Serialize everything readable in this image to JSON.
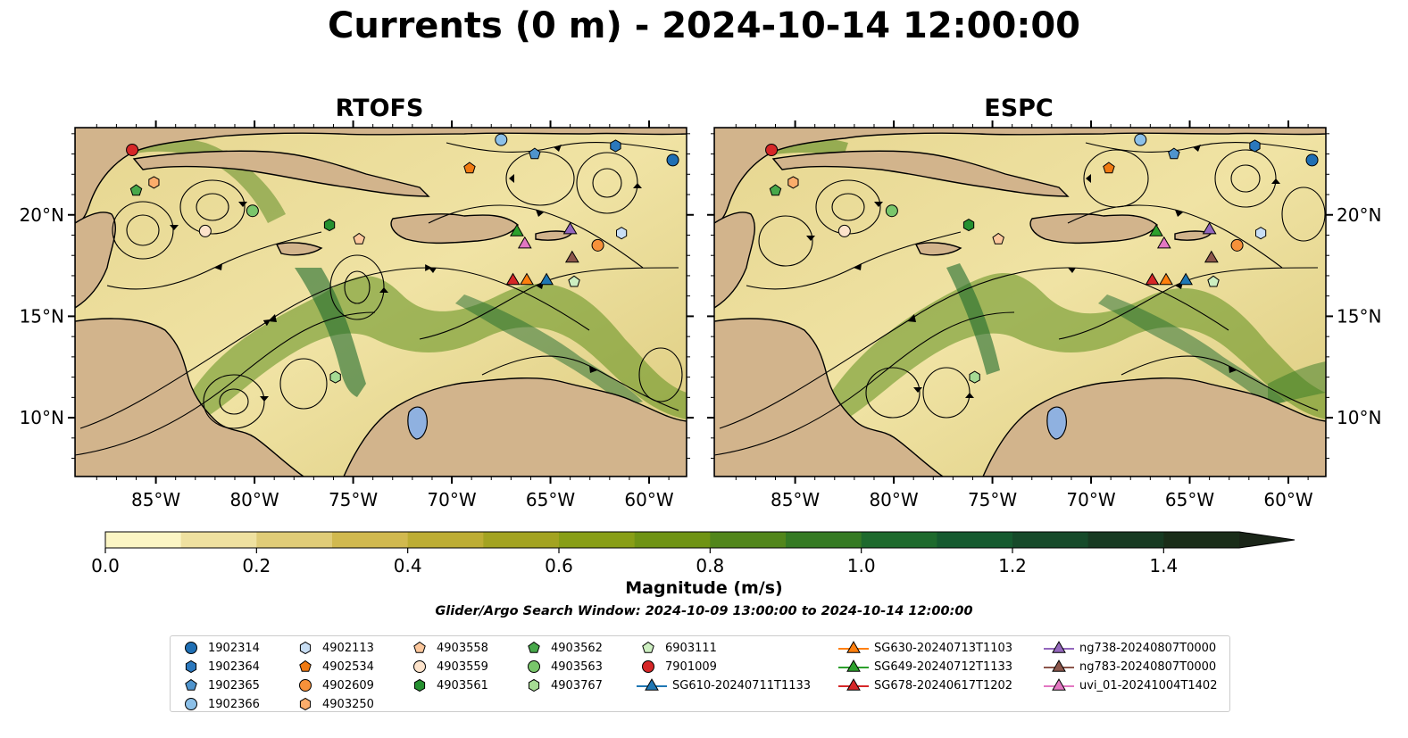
{
  "title": "Currents (0 m) - 2024-10-14 12:00:00",
  "panels": [
    {
      "title": "RTOFS"
    },
    {
      "title": "ESPC"
    }
  ],
  "axes": {
    "lat_ticks": [
      "10°N",
      "15°N",
      "20°N"
    ],
    "lon_ticks": [
      "85°W",
      "80°W",
      "75°W",
      "70°W",
      "65°W",
      "60°W"
    ]
  },
  "colorbar": {
    "label": "Magnitude (m/s)",
    "ticks": [
      "0.0",
      "0.2",
      "0.4",
      "0.6",
      "0.8",
      "1.0",
      "1.2",
      "1.4"
    ],
    "range": [
      0,
      1.5
    ],
    "extend": "max",
    "colors": [
      "#fbf5c4",
      "#efe1a0",
      "#e0cc78",
      "#d1b94f",
      "#bdad34",
      "#a3a321",
      "#889e16",
      "#6f9314",
      "#52861b",
      "#357a23",
      "#1e6a2d",
      "#155a2f",
      "#164a2a",
      "#173a22",
      "#1a2d19"
    ]
  },
  "search_window": "Glider/Argo Search Window: 2024-10-09 13:00:00 to 2024-10-14 12:00:00",
  "map_colors": {
    "land": "#d2b48c",
    "lakes": "#8fb1e0",
    "rivers": "#9cb4d8",
    "streamlines": "#000000"
  },
  "legend": [
    {
      "label": "1902314",
      "marker": "circle",
      "color": "#1f6fb4"
    },
    {
      "label": "1902364",
      "marker": "hexagon",
      "color": "#2b78bd"
    },
    {
      "label": "1902365",
      "marker": "pentagon",
      "color": "#4f94cd"
    },
    {
      "label": "1902366",
      "marker": "circle",
      "color": "#8cc0e8"
    },
    {
      "label": "4902113",
      "marker": "hexagon",
      "color": "#c8def4"
    },
    {
      "label": "4902534",
      "marker": "pentagon",
      "color": "#f07a12"
    },
    {
      "label": "4902609",
      "marker": "circle",
      "color": "#f6913a"
    },
    {
      "label": "4903250",
      "marker": "hexagon",
      "color": "#fbad6b"
    },
    {
      "label": "4903558",
      "marker": "pentagon",
      "color": "#fcc79c"
    },
    {
      "label": "4903559",
      "marker": "circle",
      "color": "#fde3cb"
    },
    {
      "label": "4903561",
      "marker": "hexagon",
      "color": "#259030"
    },
    {
      "label": "4903562",
      "marker": "pentagon",
      "color": "#47a84a"
    },
    {
      "label": "4903563",
      "marker": "circle",
      "color": "#79c66b"
    },
    {
      "label": "4903767",
      "marker": "hexagon",
      "color": "#a6db94"
    },
    {
      "label": "6903111",
      "marker": "pentagon",
      "color": "#cdefc1"
    },
    {
      "label": "7901009",
      "marker": "circle",
      "color": "#d62728"
    },
    {
      "label": "SG610-20240711T1133",
      "marker": "triangle-line",
      "color": "#1f77b4"
    },
    {
      "label": "SG630-20240713T1103",
      "marker": "triangle-line",
      "color": "#ff7f0e"
    },
    {
      "label": "SG649-20240712T1133",
      "marker": "triangle-line",
      "color": "#2ca02c"
    },
    {
      "label": "SG678-20240617T1202",
      "marker": "triangle-line",
      "color": "#d62728"
    },
    {
      "label": "ng738-20240807T0000",
      "marker": "triangle-line",
      "color": "#9467bd"
    },
    {
      "label": "ng783-20240807T0000",
      "marker": "triangle-line",
      "color": "#8c564b"
    },
    {
      "label": "uvi_01-20241004T1402",
      "marker": "triangle-line",
      "color": "#e377c2"
    }
  ],
  "observations": [
    {
      "id": "7901009",
      "lon": -86.2,
      "lat": 23.2
    },
    {
      "id": "4903250",
      "lon": -85.1,
      "lat": 21.6
    },
    {
      "id": "4903562",
      "lon": -86.0,
      "lat": 21.2
    },
    {
      "id": "4903559",
      "lon": -82.5,
      "lat": 19.2
    },
    {
      "id": "4903563",
      "lon": -80.1,
      "lat": 20.2
    },
    {
      "id": "4903561",
      "lon": -76.2,
      "lat": 19.5
    },
    {
      "id": "4903558",
      "lon": -74.7,
      "lat": 18.8
    },
    {
      "id": "1902366",
      "lon": -67.5,
      "lat": 23.7
    },
    {
      "id": "1902365",
      "lon": -65.8,
      "lat": 23.0
    },
    {
      "id": "1902364",
      "lon": -61.7,
      "lat": 23.4
    },
    {
      "id": "1902314",
      "lon": -58.8,
      "lat": 22.7
    },
    {
      "id": "4902534",
      "lon": -69.1,
      "lat": 22.3
    },
    {
      "id": "4902609",
      "lon": -62.6,
      "lat": 18.5
    },
    {
      "id": "4902113",
      "lon": -61.4,
      "lat": 19.1
    },
    {
      "id": "6903111",
      "lon": -63.8,
      "lat": 16.7
    },
    {
      "id": "4903767",
      "lon": -75.9,
      "lat": 12.0
    },
    {
      "id": "SG649-20240712T1133",
      "lon": -66.7,
      "lat": 19.2
    },
    {
      "id": "uvi_01-20241004T1402",
      "lon": -66.3,
      "lat": 18.6
    },
    {
      "id": "ng738-20240807T0000",
      "lon": -64.0,
      "lat": 19.3
    },
    {
      "id": "ng783-20240807T0000",
      "lon": -63.9,
      "lat": 17.9
    },
    {
      "id": "SG678-20240617T1202",
      "lon": -66.9,
      "lat": 16.8
    },
    {
      "id": "SG630-20240713T1103",
      "lon": -66.2,
      "lat": 16.8
    },
    {
      "id": "SG610-20240711T1133",
      "lon": -65.2,
      "lat": 16.8
    }
  ]
}
